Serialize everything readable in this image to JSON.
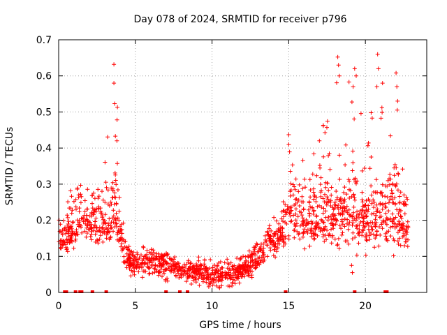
{
  "chart_data": {
    "type": "scatter",
    "title": "Day 078 of 2024, SRMTID for receiver p796",
    "xlabel": "GPS time / hours",
    "ylabel": "SRMTID / TECUs",
    "xlim": [
      0,
      24
    ],
    "ylim": [
      0,
      0.7
    ],
    "xticks": [
      0,
      5,
      10,
      15,
      20
    ],
    "yticks": [
      0,
      0.1,
      0.2,
      0.3,
      0.4,
      0.5,
      0.6,
      0.7
    ],
    "xtick_labels": [
      "0",
      "5",
      "10",
      "15",
      "20"
    ],
    "ytick_labels": [
      "0",
      "0.1",
      "0.2",
      "0.3",
      "0.4",
      "0.5",
      "0.6",
      "0.7"
    ],
    "grid": true,
    "marker": "+",
    "color": "#ff0000",
    "x_extent_hours": [
      0,
      22.8
    ],
    "envelope": {
      "description": "approximate typical value (mid) and spread (lo/hi) of plotted points by hour",
      "hours": [
        0,
        1,
        2,
        3,
        3.7,
        4.3,
        5,
        6,
        7,
        8,
        9,
        10,
        11,
        12,
        13,
        13.7,
        14.5,
        15,
        16,
        17,
        18,
        19,
        20,
        21,
        22,
        22.8
      ],
      "mid": [
        0.13,
        0.17,
        0.2,
        0.18,
        0.22,
        0.1,
        0.08,
        0.09,
        0.08,
        0.06,
        0.06,
        0.05,
        0.05,
        0.06,
        0.09,
        0.15,
        0.15,
        0.2,
        0.2,
        0.2,
        0.22,
        0.22,
        0.2,
        0.2,
        0.22,
        0.16
      ],
      "lo": [
        0.09,
        0.12,
        0.14,
        0.1,
        0.13,
        0.05,
        0.03,
        0.04,
        0.03,
        0.02,
        0.02,
        0.01,
        0.01,
        0.02,
        0.05,
        0.1,
        0.09,
        0.13,
        0.12,
        0.11,
        0.11,
        0.1,
        0.1,
        0.1,
        0.1,
        0.09
      ],
      "hi": [
        0.24,
        0.32,
        0.3,
        0.37,
        0.63,
        0.18,
        0.13,
        0.13,
        0.12,
        0.1,
        0.1,
        0.09,
        0.1,
        0.11,
        0.16,
        0.2,
        0.22,
        0.44,
        0.4,
        0.43,
        0.65,
        0.62,
        0.45,
        0.66,
        0.61,
        0.23
      ]
    },
    "peak_points": [
      {
        "x": 3.6,
        "y": 0.632
      },
      {
        "x": 3.6,
        "y": 0.58
      },
      {
        "x": 3.65,
        "y": 0.523
      },
      {
        "x": 3.7,
        "y": 0.433
      },
      {
        "x": 3.8,
        "y": 0.42
      },
      {
        "x": 18.2,
        "y": 0.652
      },
      {
        "x": 18.25,
        "y": 0.63
      },
      {
        "x": 18.3,
        "y": 0.6
      },
      {
        "x": 19.3,
        "y": 0.62
      },
      {
        "x": 19.4,
        "y": 0.6
      },
      {
        "x": 19.2,
        "y": 0.57
      },
      {
        "x": 20.8,
        "y": 0.66
      },
      {
        "x": 20.85,
        "y": 0.62
      },
      {
        "x": 20.75,
        "y": 0.57
      },
      {
        "x": 22.0,
        "y": 0.608
      },
      {
        "x": 22.05,
        "y": 0.57
      },
      {
        "x": 22.1,
        "y": 0.53
      },
      {
        "x": 15.0,
        "y": 0.437
      },
      {
        "x": 15.0,
        "y": 0.41
      },
      {
        "x": 17.0,
        "y": 0.42
      },
      {
        "x": 19.1,
        "y": 0.075
      },
      {
        "x": 19.15,
        "y": 0.055
      }
    ],
    "zero_points_x": [
      0.4,
      0.5,
      1.1,
      1.4,
      1.5,
      2.2,
      3.1,
      7.0,
      7.9,
      8.4,
      14.8,
      19.3,
      21.3,
      21.4
    ]
  }
}
